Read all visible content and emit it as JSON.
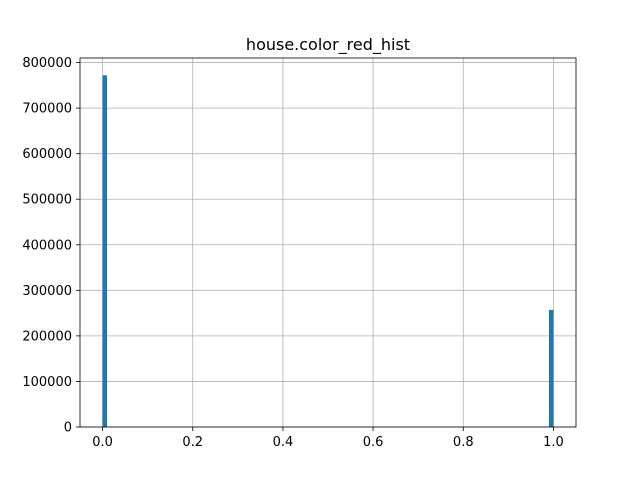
{
  "chart_data": {
    "type": "bar",
    "title": "house.color_red_hist",
    "xlabel": "",
    "ylabel": "",
    "xlim": [
      -0.05,
      1.05
    ],
    "ylim": [
      0,
      810000
    ],
    "grid": true,
    "bins": 100,
    "x_ticks": [
      0.0,
      0.2,
      0.4,
      0.6,
      0.8,
      1.0
    ],
    "x_tick_labels": [
      "0.0",
      "0.2",
      "0.4",
      "0.6",
      "0.8",
      "1.0"
    ],
    "y_ticks": [
      0,
      100000,
      200000,
      300000,
      400000,
      500000,
      600000,
      700000,
      800000
    ],
    "y_tick_labels": [
      "0",
      "100000",
      "200000",
      "300000",
      "400000",
      "500000",
      "600000",
      "700000",
      "800000"
    ],
    "bars": [
      {
        "x_start": 0.0,
        "x_end": 0.01,
        "count": 772000
      },
      {
        "x_start": 0.99,
        "x_end": 1.0,
        "count": 257000
      }
    ],
    "colors": {
      "bar": "#1f77b4",
      "grid": "#b0b0b0",
      "axis": "#000000"
    }
  }
}
